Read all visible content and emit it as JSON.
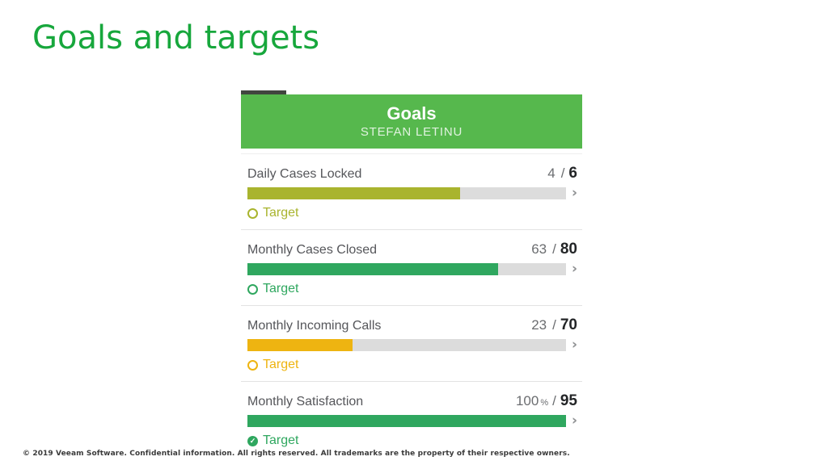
{
  "slide": {
    "title": "Goals and targets",
    "footer": "© 2019 Veeam Software. Confidential information. All rights reserved. All trademarks are the property of their respective owners."
  },
  "card": {
    "title": "Goals",
    "subtitle": "STEFAN LETINU",
    "target_label": "Target",
    "value_separator": "/",
    "chevron_icon": "›"
  },
  "colors": {
    "slide_title_green": "#17a73c",
    "header_green": "#56b84d",
    "olive": "#a9b42e",
    "emerald": "#2fa75f",
    "amber": "#eeb411",
    "track_gray": "#dcdcdc"
  },
  "goals": [
    {
      "name": "Daily Cases Locked",
      "current": "4",
      "unit": "",
      "target": "6",
      "percent": 66.7,
      "color": "#a9b42e",
      "target_icon": "ring"
    },
    {
      "name": "Monthly Cases Closed",
      "current": "63",
      "unit": "",
      "target": "80",
      "percent": 78.8,
      "color": "#2fa75f",
      "target_icon": "ring"
    },
    {
      "name": "Monthly Incoming Calls",
      "current": "23",
      "unit": "",
      "target": "70",
      "percent": 32.9,
      "color": "#eeb411",
      "target_icon": "ring"
    },
    {
      "name": "Monthly Satisfaction",
      "current": "100",
      "unit": "%",
      "target": "95",
      "percent": 100,
      "color": "#2fa75f",
      "target_icon": "check"
    }
  ]
}
